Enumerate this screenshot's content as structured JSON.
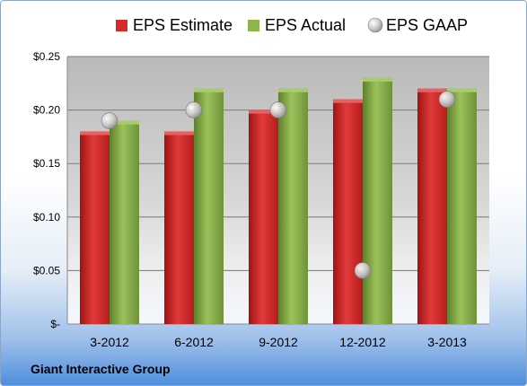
{
  "company": "Giant Interactive Group",
  "colors": {
    "estimate": "#d42a2a",
    "estimate_dark": "#8e1313",
    "actual": "#8eb44c",
    "actual_dark": "#56752a",
    "gaap": "#c8c8c8",
    "plot_bg_top": "#bdbdbd",
    "plot_bg_bottom": "#ffffff"
  },
  "chart_data": {
    "type": "bar",
    "categories": [
      "3-2012",
      "6-2012",
      "9-2012",
      "12-2012",
      "3-2013"
    ],
    "series": [
      {
        "name": "EPS Estimate",
        "kind": "bar",
        "values": [
          0.18,
          0.18,
          0.2,
          0.21,
          0.22
        ]
      },
      {
        "name": "EPS Actual",
        "kind": "bar",
        "values": [
          0.19,
          0.22,
          0.22,
          0.23,
          0.22
        ]
      },
      {
        "name": "EPS GAAP",
        "kind": "marker",
        "values": [
          0.19,
          0.2,
          0.2,
          0.05,
          0.21
        ]
      }
    ],
    "ylim": [
      0,
      0.25
    ],
    "yticks": [
      0,
      0.05,
      0.1,
      0.15,
      0.2,
      0.25
    ],
    "ytick_labels": [
      "$-",
      "$0.05",
      "$0.10",
      "$0.15",
      "$0.20",
      "$0.25"
    ],
    "grid": true,
    "legend_position": "top"
  }
}
